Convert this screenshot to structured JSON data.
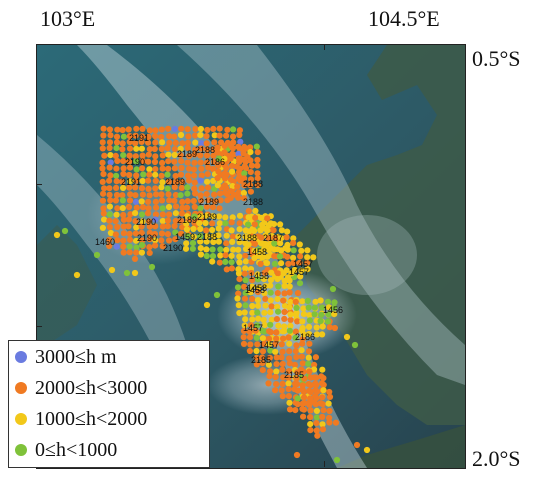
{
  "map": {
    "labels": {
      "top_left": "103°E",
      "top_right": "104.5°E",
      "right_top": "0.5°S",
      "right_bottom": "2.0°S"
    },
    "legend": [
      {
        "label": "3000≤h m",
        "color": "#6a7be0"
      },
      {
        "label": "2000≤h<3000",
        "color": "#f07a22"
      },
      {
        "label": "1000≤h<2000",
        "color": "#f2c81a"
      },
      {
        "label": "0≤h<1000",
        "color": "#7fc23a"
      }
    ],
    "point_labels": [
      "2191",
      "2190",
      "2191",
      "2189",
      "2189",
      "2186",
      "2188",
      "2188",
      "2189",
      "2188",
      "2189",
      "2190",
      "2189",
      "2190",
      "2190",
      "1460",
      "1459",
      "2188",
      "2188",
      "2187",
      "1458",
      "1458",
      "1457",
      "1457",
      "1458",
      "1458",
      "1456",
      "1457",
      "1457",
      "2186",
      "2185",
      "2185"
    ],
    "colors": {
      "sea": "#2f5866",
      "land": "#3c5a48",
      "haze": "#cfe0e6",
      "frame": "#222222"
    }
  }
}
